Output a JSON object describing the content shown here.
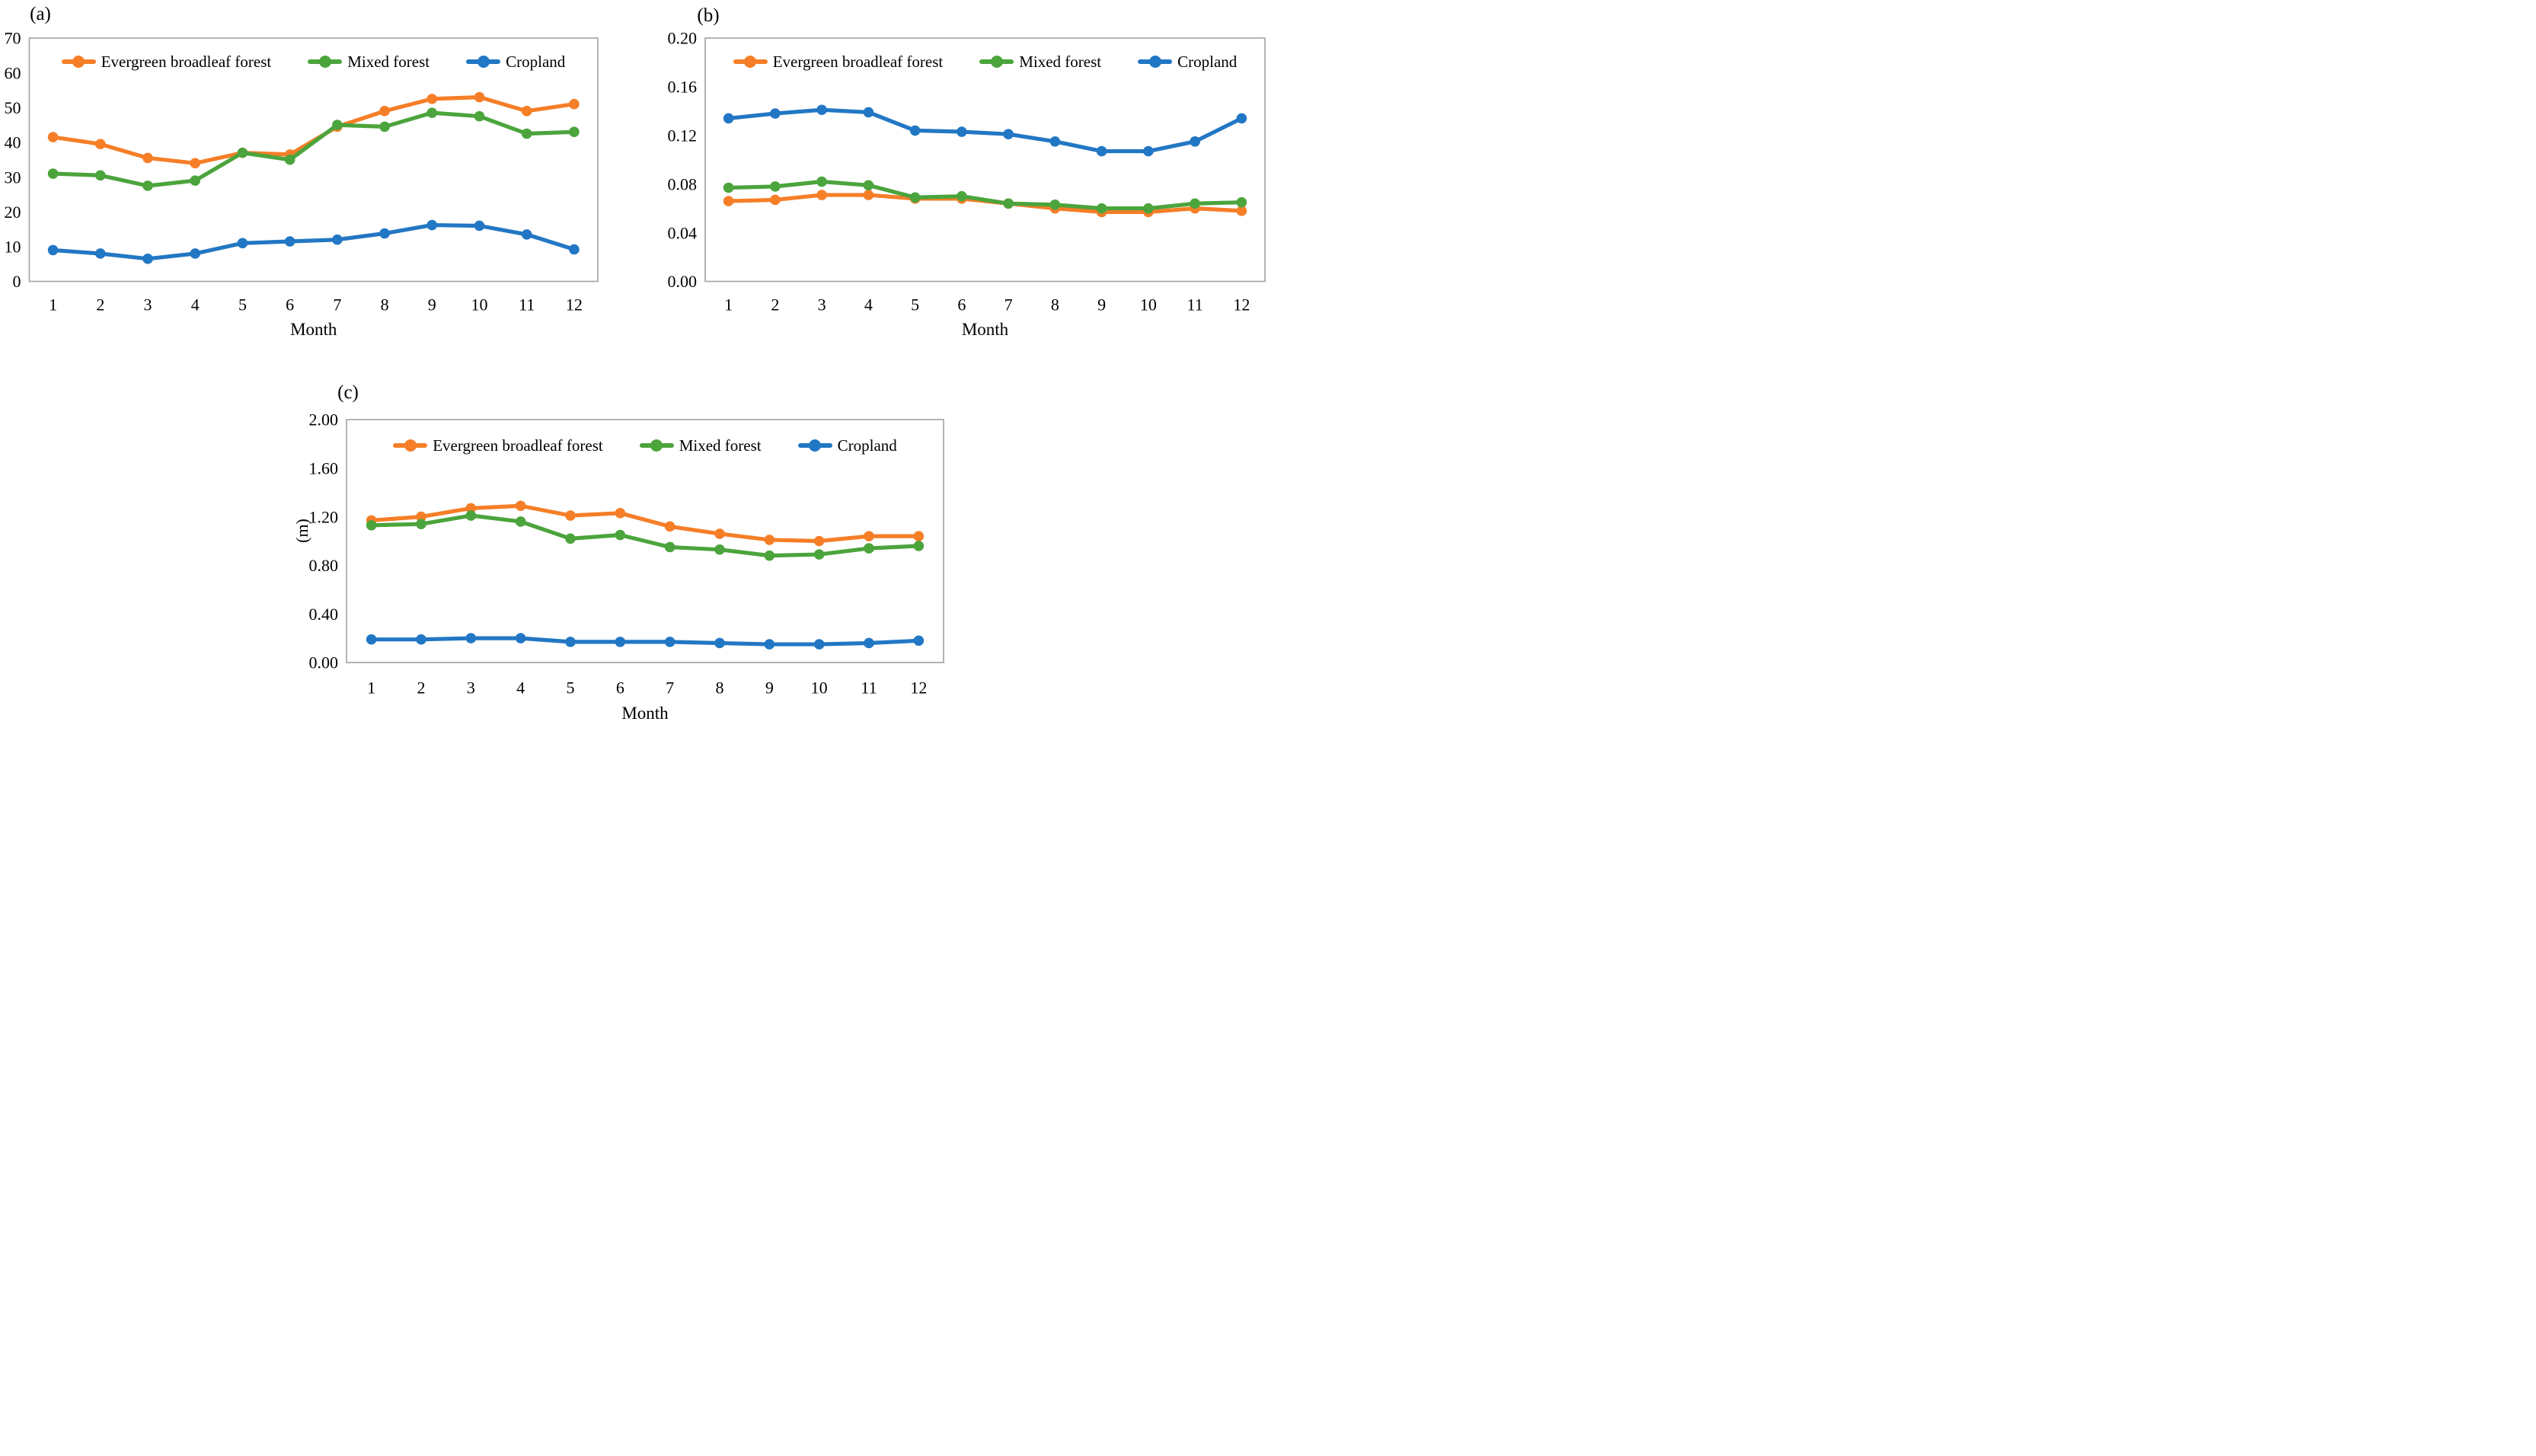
{
  "figure": {
    "background": "#FFFFFF",
    "plot_border_color": "#A6A6A6",
    "text_color": "#000000"
  },
  "chart_data": [
    {
      "type": "line",
      "panel_label": "(a)",
      "xlabel": "Month",
      "ylabel": "",
      "categories": [
        "1",
        "2",
        "3",
        "4",
        "5",
        "6",
        "7",
        "8",
        "9",
        "10",
        "11",
        "12"
      ],
      "ylim": [
        0,
        70
      ],
      "ytick_values": [
        0,
        10,
        20,
        30,
        40,
        50,
        60,
        70
      ],
      "ytick_labels": [
        "0",
        "10",
        "20",
        "30",
        "40",
        "50",
        "60",
        "70"
      ],
      "grid": false,
      "legend_position": "top-center-inside",
      "series": [
        {
          "name": "Evergreen broadleaf forest",
          "color": "#F57E27",
          "values": [
            41.5,
            39.5,
            35.5,
            34.0,
            37.0,
            36.5,
            44.5,
            49.0,
            52.5,
            53.0,
            49.0,
            51.0
          ]
        },
        {
          "name": "Mixed forest",
          "color": "#4BA43C",
          "values": [
            31.0,
            30.5,
            27.5,
            29.0,
            37.0,
            35.0,
            45.0,
            44.5,
            48.5,
            47.5,
            42.5,
            43.0
          ]
        },
        {
          "name": "Cropland",
          "color": "#2277C4",
          "values": [
            9.0,
            8.0,
            6.5,
            8.0,
            11.0,
            11.5,
            12.0,
            13.8,
            16.2,
            16.0,
            13.5,
            9.2
          ]
        }
      ]
    },
    {
      "type": "line",
      "panel_label": "(b)",
      "xlabel": "Month",
      "ylabel": "",
      "categories": [
        "1",
        "2",
        "3",
        "4",
        "5",
        "6",
        "7",
        "8",
        "9",
        "10",
        "11",
        "12"
      ],
      "ylim": [
        0,
        0.2
      ],
      "ytick_values": [
        0,
        0.04,
        0.08,
        0.12,
        0.16,
        0.2
      ],
      "ytick_labels": [
        "0.00",
        "0.04",
        "0.08",
        "0.12",
        "0.16",
        "0.20"
      ],
      "grid": false,
      "legend_position": "top-center-inside",
      "series": [
        {
          "name": "Evergreen broadleaf forest",
          "color": "#F57E27",
          "values": [
            0.066,
            0.067,
            0.071,
            0.071,
            0.068,
            0.068,
            0.064,
            0.06,
            0.057,
            0.057,
            0.06,
            0.058
          ]
        },
        {
          "name": "Mixed forest",
          "color": "#4BA43C",
          "values": [
            0.077,
            0.078,
            0.082,
            0.079,
            0.069,
            0.07,
            0.064,
            0.063,
            0.06,
            0.06,
            0.064,
            0.065
          ]
        },
        {
          "name": "Cropland",
          "color": "#2277C4",
          "values": [
            0.134,
            0.138,
            0.141,
            0.139,
            0.124,
            0.123,
            0.121,
            0.115,
            0.107,
            0.107,
            0.115,
            0.134
          ]
        }
      ]
    },
    {
      "type": "line",
      "panel_label": "(c)",
      "xlabel": "Month",
      "ylabel": "(m)",
      "categories": [
        "1",
        "2",
        "3",
        "4",
        "5",
        "6",
        "7",
        "8",
        "9",
        "10",
        "11",
        "12"
      ],
      "ylim": [
        0,
        2.0
      ],
      "ytick_values": [
        0,
        0.4,
        0.8,
        1.2,
        1.6,
        2.0
      ],
      "ytick_labels": [
        "0.00",
        "0.40",
        "0.80",
        "1.20",
        "1.60",
        "2.00"
      ],
      "grid": false,
      "legend_position": "top-center-inside",
      "series": [
        {
          "name": "Evergreen broadleaf forest",
          "color": "#F57E27",
          "values": [
            1.17,
            1.2,
            1.27,
            1.29,
            1.21,
            1.23,
            1.12,
            1.06,
            1.01,
            1.0,
            1.04,
            1.04
          ]
        },
        {
          "name": "Mixed forest",
          "color": "#4BA43C",
          "values": [
            1.13,
            1.14,
            1.21,
            1.16,
            1.02,
            1.05,
            0.95,
            0.93,
            0.88,
            0.89,
            0.94,
            0.96
          ]
        },
        {
          "name": "Cropland",
          "color": "#2277C4",
          "values": [
            0.19,
            0.19,
            0.2,
            0.2,
            0.17,
            0.17,
            0.17,
            0.16,
            0.15,
            0.15,
            0.16,
            0.18
          ]
        }
      ]
    }
  ]
}
